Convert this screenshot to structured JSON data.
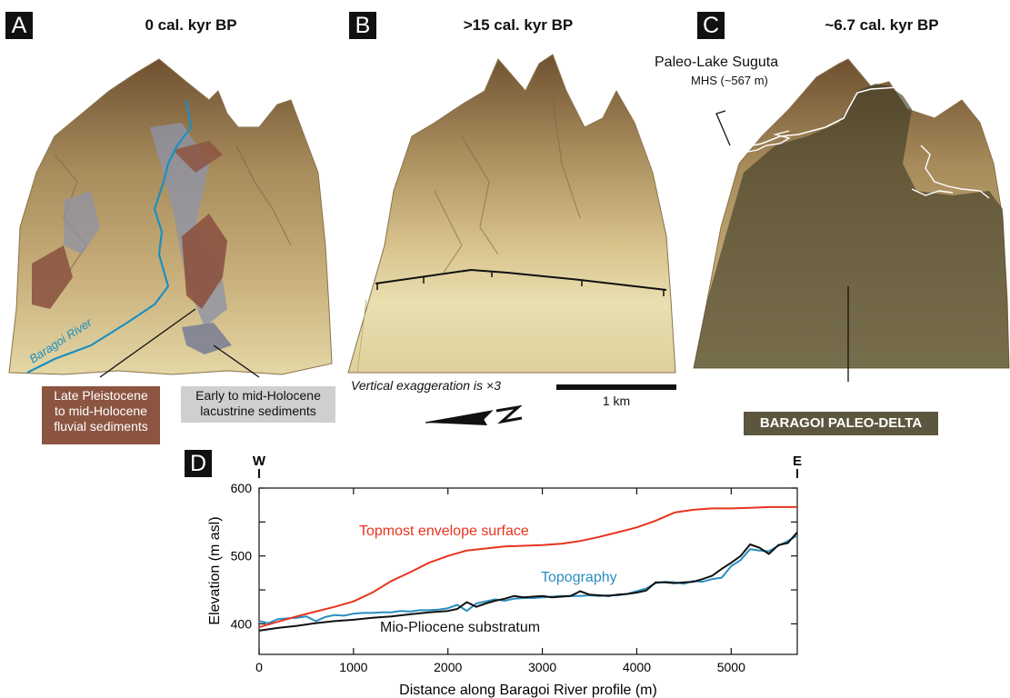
{
  "panels": {
    "A": {
      "letter": "A",
      "title": "0 cal. kyr BP",
      "river_label": "Baragoi River",
      "fluvial_label": [
        "Late Pleistocene",
        "to mid-Holocene",
        "fluvial sediments"
      ],
      "lacustrine_label": [
        "Early to mid-Holocene",
        "lacustrine sediments"
      ]
    },
    "B": {
      "letter": "B",
      "title": ">15 cal. kyr BP",
      "exaggeration": "Vertical exaggeration is ×3",
      "scale_label": "1 km"
    },
    "C": {
      "letter": "C",
      "title": "~6.7 cal. kyr BP",
      "lake_name": "Paleo-Lake Suguta",
      "lake_level": "MHS (~567 m)",
      "delta_label": "BARAGOI PALEO-DELTA"
    },
    "D": {
      "letter": "D",
      "west": "W",
      "east": "E"
    }
  },
  "colors": {
    "terrain_high": "#7a5a35",
    "terrain_mid": "#b89a6a",
    "terrain_low": "#e9dfb0",
    "fluvial": "#8c5542",
    "lacustrine": "#8f93a6",
    "river": "#1b8fc0",
    "lake_overlay": "#3c3a25",
    "delta_box": "#5b563d",
    "envelope": "#e8331e",
    "topography": "#2a8ebf",
    "substratum": "#111111"
  },
  "chart_data": {
    "type": "line",
    "xlabel": "Distance along Baragoi River profile (m)",
    "ylabel": "Elevation (m asl)",
    "xlim": [
      0,
      5700
    ],
    "ylim": [
      355,
      600
    ],
    "xticks": [
      0,
      1000,
      2000,
      3000,
      4000,
      5000
    ],
    "yticks": [
      400,
      500,
      600
    ],
    "series": [
      {
        "name": "Topmost envelope surface",
        "x": [
          0,
          200,
          400,
          600,
          800,
          1000,
          1200,
          1400,
          1600,
          1800,
          2000,
          2200,
          2400,
          2600,
          2800,
          3000,
          3200,
          3400,
          3600,
          3800,
          4000,
          4200,
          4400,
          4600,
          4800,
          5000,
          5200,
          5400,
          5700
        ],
        "y": [
          395,
          403,
          411,
          418,
          425,
          433,
          446,
          463,
          476,
          490,
          500,
          508,
          511,
          514,
          515,
          516,
          518,
          522,
          528,
          535,
          542,
          552,
          564,
          568,
          570,
          570,
          571,
          572,
          572
        ]
      },
      {
        "name": "Topography",
        "x": [
          0,
          100,
          200,
          300,
          400,
          500,
          600,
          700,
          800,
          900,
          1000,
          1100,
          1200,
          1300,
          1400,
          1500,
          1600,
          1700,
          1800,
          1900,
          2000,
          2100,
          2200,
          2300,
          2400,
          2500,
          2600,
          2700,
          2800,
          2900,
          3000,
          3100,
          3200,
          3300,
          3400,
          3500,
          3600,
          3700,
          3800,
          3900,
          4000,
          4100,
          4200,
          4300,
          4400,
          4500,
          4600,
          4700,
          4800,
          4900,
          5000,
          5100,
          5200,
          5300,
          5400,
          5500,
          5600,
          5700
        ],
        "y": [
          404,
          401,
          407,
          408,
          409,
          411,
          404,
          410,
          413,
          412,
          415,
          416,
          416,
          417,
          417,
          419,
          418,
          420,
          420,
          421,
          423,
          428,
          419,
          430,
          433,
          436,
          434,
          437,
          438,
          438,
          439,
          440,
          441,
          441,
          441,
          442,
          441,
          442,
          442,
          444,
          448,
          452,
          460,
          462,
          461,
          459,
          463,
          462,
          466,
          468,
          485,
          494,
          510,
          508,
          507,
          515,
          522,
          530
        ]
      },
      {
        "name": "Mio-Pliocene substratum",
        "x": [
          0,
          200,
          400,
          600,
          800,
          1000,
          1200,
          1400,
          1600,
          1800,
          2000,
          2100,
          2200,
          2300,
          2400,
          2500,
          2600,
          2700,
          2800,
          2900,
          3000,
          3100,
          3200,
          3300,
          3400,
          3500,
          3600,
          3700,
          3800,
          3900,
          4000,
          4100,
          4200,
          4300,
          4400,
          4500,
          4600,
          4700,
          4800,
          4900,
          5000,
          5100,
          5200,
          5300,
          5400,
          5500,
          5600,
          5700
        ],
        "y": [
          390,
          394,
          397,
          401,
          404,
          406,
          409,
          411,
          414,
          417,
          419,
          422,
          432,
          425,
          430,
          434,
          437,
          441,
          439,
          440,
          441,
          439,
          440,
          441,
          448,
          443,
          442,
          441,
          443,
          444,
          446,
          449,
          461,
          461,
          460,
          461,
          462,
          466,
          471,
          481,
          490,
          500,
          517,
          512,
          503,
          516,
          519,
          535
        ]
      }
    ]
  }
}
